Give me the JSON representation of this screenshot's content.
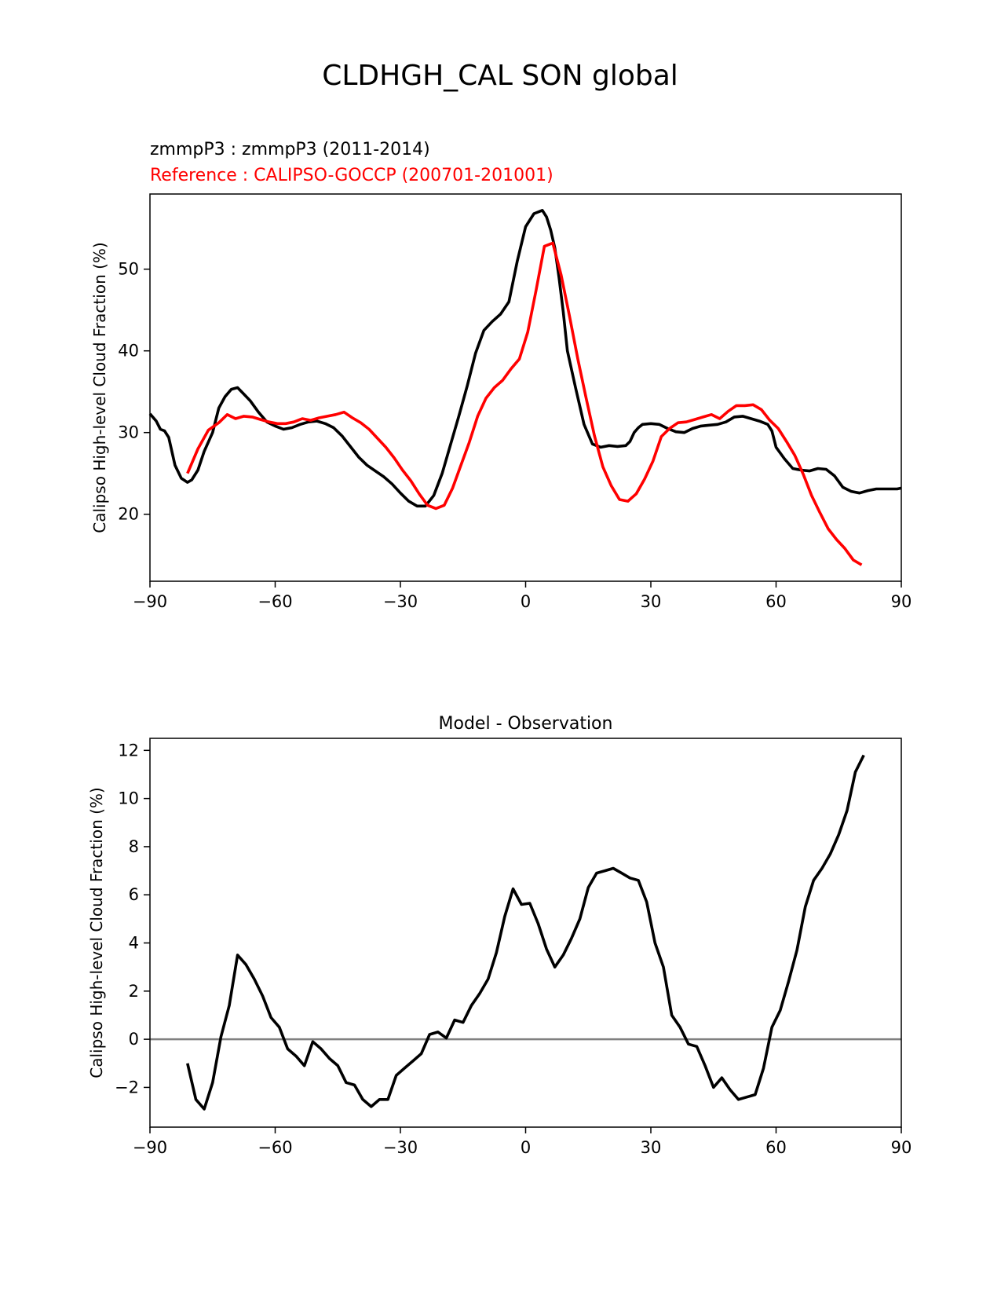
{
  "figure": {
    "title": "CLDHGH_CAL SON global"
  },
  "chart_data": [
    {
      "type": "line",
      "header": {
        "test_label": "zmmpP3 : zmmpP3 (2011-2014)",
        "ref_label": "Reference : CALIPSO-GOCCP (200701-201001)"
      },
      "title": "",
      "xlabel": "",
      "ylabel": "Calipso High-level Cloud Fraction (%)",
      "xlim": [
        -90,
        90
      ],
      "ylim": [
        11.8,
        59.2
      ],
      "xticks": [
        -90,
        -60,
        -30,
        0,
        30,
        60,
        90
      ],
      "xtick_labels": [
        "−90",
        "−60",
        "−30",
        "0",
        "30",
        "60",
        "90"
      ],
      "yticks": [
        20,
        30,
        40,
        50
      ],
      "ytick_labels": [
        "20",
        "30",
        "40",
        "50"
      ],
      "grid": false,
      "series": [
        {
          "name": "zmmpP3",
          "color": "#000000",
          "x": [
            -90,
            -88.5,
            -87.5,
            -86.5,
            -85.5,
            -84,
            -82.5,
            -81,
            -80,
            -78.5,
            -77,
            -75,
            -73.5,
            -72,
            -70.5,
            -69,
            -67.5,
            -66,
            -64,
            -62,
            -60,
            -58,
            -56,
            -54,
            -52,
            -50,
            -48,
            -46,
            -44,
            -42,
            -40,
            -38,
            -36,
            -34,
            -32,
            -30,
            -28,
            -26,
            -24,
            -22,
            -20,
            -18,
            -16,
            -14,
            -12,
            -10,
            -8,
            -6,
            -4,
            -2,
            0,
            2,
            4,
            5,
            6,
            7,
            8,
            9,
            10,
            12,
            14,
            16,
            18,
            20,
            22,
            24,
            25,
            26,
            27,
            28,
            30,
            32,
            34,
            36,
            38,
            40,
            42,
            44,
            46,
            48,
            50,
            52,
            54,
            56,
            58,
            59,
            60,
            62,
            64,
            66,
            68,
            70,
            72,
            74,
            76,
            78,
            80,
            82,
            84,
            86,
            87,
            88,
            89,
            90
          ],
          "y": [
            32.3,
            31.4,
            30.4,
            30.2,
            29.4,
            26.0,
            24.4,
            23.9,
            24.2,
            25.4,
            27.7,
            30.0,
            33.0,
            34.4,
            35.3,
            35.5,
            34.7,
            33.9,
            32.5,
            31.3,
            30.8,
            30.4,
            30.6,
            31.0,
            31.3,
            31.4,
            31.1,
            30.6,
            29.6,
            28.3,
            27.0,
            26.0,
            25.3,
            24.6,
            23.7,
            22.6,
            21.6,
            21.0,
            21.0,
            22.3,
            25.0,
            28.5,
            32.0,
            35.7,
            39.7,
            42.5,
            43.6,
            44.5,
            46.0,
            51.0,
            55.2,
            56.8,
            57.2,
            56.4,
            54.8,
            52.6,
            49.0,
            44.8,
            40.0,
            35.4,
            31.0,
            28.6,
            28.2,
            28.4,
            28.3,
            28.4,
            28.9,
            30.0,
            30.6,
            31.0,
            31.1,
            31.0,
            30.5,
            30.1,
            30.0,
            30.5,
            30.8,
            30.9,
            31.0,
            31.3,
            31.9,
            32.0,
            31.7,
            31.4,
            31.0,
            30.2,
            28.2,
            26.8,
            25.6,
            25.4,
            25.3,
            25.6,
            25.5,
            24.7,
            23.3,
            22.8,
            22.6,
            22.9,
            23.1,
            23.1,
            23.1,
            23.1,
            23.1,
            23.2
          ]
        },
        {
          "name": "CALIPSO-GOCCP",
          "color": "#ff0000",
          "x": [
            -81,
            -78.5,
            -76,
            -73.5,
            -71.5,
            -69.5,
            -67.5,
            -65.5,
            -63.5,
            -61.5,
            -59.5,
            -57.5,
            -55.5,
            -53.5,
            -51.5,
            -49.5,
            -47.5,
            -45.5,
            -43.5,
            -41.5,
            -39.5,
            -37.5,
            -35.5,
            -33.5,
            -31.5,
            -29.5,
            -27.5,
            -25.5,
            -23.5,
            -21.5,
            -19.5,
            -17.5,
            -15.5,
            -13.5,
            -11.5,
            -9.5,
            -7.5,
            -5.5,
            -3.5,
            -1.5,
            0.5,
            2.5,
            4.5,
            6.5,
            8.5,
            10.5,
            12.5,
            14.5,
            16.5,
            18.5,
            20.5,
            22.5,
            24.5,
            26.5,
            28.5,
            30.5,
            32.5,
            34.5,
            36.5,
            38.5,
            40.5,
            42.5,
            44.5,
            46.5,
            48.5,
            50.5,
            52.5,
            54.5,
            56.5,
            58.5,
            60.5,
            62.5,
            64.5,
            66.5,
            68.5,
            70.5,
            72.5,
            74.5,
            76.5,
            78.5,
            80.5
          ],
          "y": [
            25.0,
            28.0,
            30.3,
            31.2,
            32.2,
            31.7,
            32.0,
            31.9,
            31.6,
            31.3,
            31.1,
            31.1,
            31.3,
            31.7,
            31.5,
            31.8,
            32.0,
            32.2,
            32.5,
            31.8,
            31.2,
            30.4,
            29.3,
            28.2,
            26.9,
            25.4,
            24.1,
            22.5,
            21.1,
            20.7,
            21.1,
            23.2,
            26.0,
            28.8,
            32.0,
            34.2,
            35.5,
            36.4,
            37.8,
            39.0,
            42.3,
            47.4,
            52.8,
            53.2,
            49.3,
            44.3,
            39.0,
            34.2,
            29.6,
            25.8,
            23.5,
            21.8,
            21.6,
            22.5,
            24.3,
            26.5,
            29.5,
            30.5,
            31.2,
            31.3,
            31.6,
            31.9,
            32.2,
            31.7,
            32.6,
            33.3,
            33.3,
            33.4,
            32.8,
            31.5,
            30.5,
            28.9,
            27.2,
            24.9,
            22.3,
            20.2,
            18.2,
            16.9,
            15.8,
            14.4,
            13.8
          ]
        }
      ]
    },
    {
      "type": "line",
      "title": "Model - Observation",
      "xlabel": "",
      "ylabel": "Calipso High-level Cloud Fraction (%)",
      "xlim": [
        -90,
        90
      ],
      "ylim": [
        -3.65,
        12.5
      ],
      "xticks": [
        -90,
        -60,
        -30,
        0,
        30,
        60,
        90
      ],
      "xtick_labels": [
        "−90",
        "−60",
        "−30",
        "0",
        "30",
        "60",
        "90"
      ],
      "yticks": [
        -2,
        0,
        2,
        4,
        6,
        8,
        10,
        12
      ],
      "ytick_labels": [
        "−2",
        "0",
        "2",
        "4",
        "6",
        "8",
        "10",
        "12"
      ],
      "grid": false,
      "reference_line": {
        "y": 0,
        "color": "#808080"
      },
      "series": [
        {
          "name": "Model - Observation",
          "color": "#000000",
          "x": [
            -81,
            -79,
            -77,
            -75,
            -73,
            -71,
            -69,
            -67,
            -65,
            -63,
            -61,
            -59,
            -57,
            -55,
            -53,
            -51,
            -49,
            -47,
            -45,
            -43,
            -41,
            -39,
            -37,
            -35,
            -33,
            -31,
            -29,
            -27,
            -25,
            -23,
            -21,
            -19,
            -17,
            -15,
            -13,
            -11,
            -9,
            -7,
            -5,
            -3,
            -1,
            1,
            3,
            5,
            7,
            9,
            11,
            13,
            15,
            17,
            19,
            21,
            23,
            25,
            27,
            29,
            31,
            33,
            35,
            37,
            39,
            41,
            43,
            45,
            47,
            49,
            51,
            53,
            55,
            57,
            59,
            61,
            63,
            65,
            67,
            69,
            71,
            73,
            75,
            77,
            79,
            81
          ],
          "y": [
            -1.0,
            -2.5,
            -2.9,
            -1.8,
            0.1,
            1.4,
            3.5,
            3.1,
            2.5,
            1.8,
            0.9,
            0.5,
            -0.4,
            -0.7,
            -1.1,
            -0.1,
            -0.4,
            -0.8,
            -1.1,
            -1.8,
            -1.9,
            -2.5,
            -2.8,
            -2.5,
            -2.5,
            -1.5,
            -1.2,
            -0.9,
            -0.6,
            0.2,
            0.3,
            0.05,
            0.8,
            0.7,
            1.4,
            1.9,
            2.5,
            3.6,
            5.1,
            6.25,
            5.6,
            5.65,
            4.8,
            3.75,
            3.0,
            3.5,
            4.2,
            5.0,
            6.3,
            6.9,
            7.0,
            7.1,
            6.9,
            6.7,
            6.6,
            5.7,
            4.0,
            3.0,
            1.0,
            0.5,
            -0.2,
            -0.3,
            -1.1,
            -2.0,
            -1.6,
            -2.1,
            -2.5,
            -2.4,
            -2.3,
            -1.2,
            0.5,
            1.2,
            2.4,
            3.7,
            5.5,
            6.6,
            7.1,
            7.7,
            8.5,
            9.5,
            11.1,
            11.8
          ]
        }
      ]
    }
  ]
}
